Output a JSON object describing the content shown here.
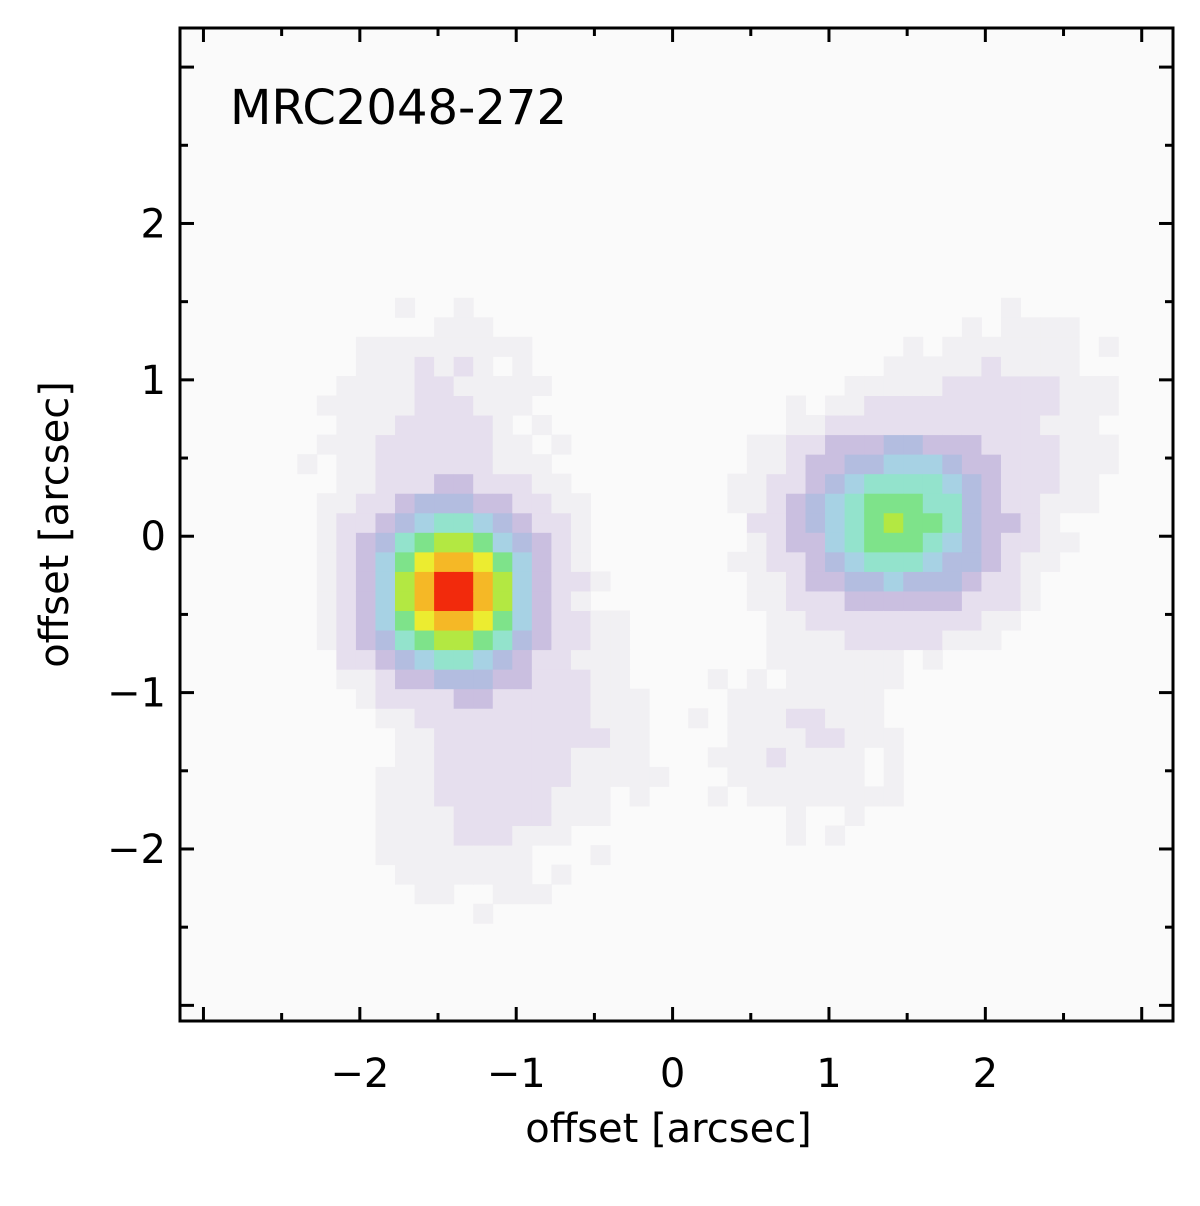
{
  "chart_data": {
    "type": "heatmap",
    "title": "MRC2048-272",
    "xlabel": "offset [arcsec]",
    "ylabel": "offset [arcsec]",
    "xlim": [
      -3.15,
      3.2
    ],
    "ylim": [
      -3.1,
      3.25
    ],
    "major_ticks": [
      -2,
      -1,
      0,
      1,
      2
    ],
    "minor_tick_step": 0.5,
    "tick_labels": [
      "−2",
      "−1",
      "0",
      "1",
      "2"
    ],
    "grid": false,
    "pixel_scale": 0.125,
    "sources": [
      {
        "x": -1.4,
        "y": -0.35,
        "peak": 1.0,
        "sigma_x": 0.32,
        "sigma_y": 0.33
      },
      {
        "x": 1.45,
        "y": 0.1,
        "peak": 0.6,
        "sigma_x": 0.4,
        "sigma_y": 0.35
      }
    ],
    "faint_extensions": [
      {
        "x": -1.55,
        "y": 0.75,
        "peak": 0.06,
        "sigma": 0.45
      },
      {
        "x": -0.9,
        "y": -1.25,
        "peak": 0.07,
        "sigma": 0.45
      },
      {
        "x": -1.35,
        "y": -1.85,
        "peak": 0.04,
        "sigma": 0.35
      },
      {
        "x": 2.2,
        "y": 0.85,
        "peak": 0.06,
        "sigma": 0.4
      },
      {
        "x": 0.85,
        "y": -1.3,
        "peak": 0.05,
        "sigma": 0.4
      }
    ],
    "colormap": [
      "#fafafa",
      "#e6dfee",
      "#cabfe0",
      "#b3bde0",
      "#a7d2e4",
      "#93e3cc",
      "#7ee38a",
      "#b3e842",
      "#ecec30",
      "#f5b826",
      "#f2721a",
      "#f22a0c"
    ]
  }
}
